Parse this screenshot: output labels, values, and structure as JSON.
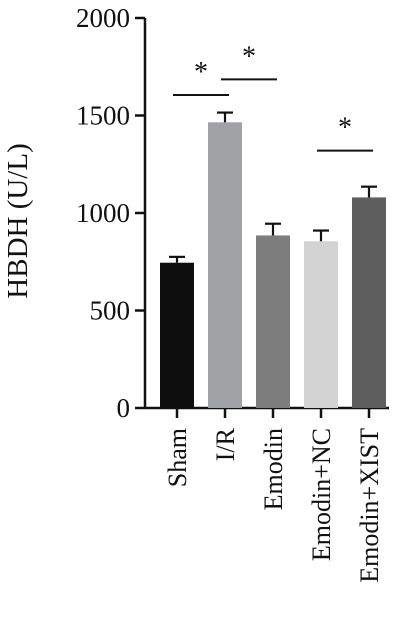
{
  "chart_data": {
    "type": "bar",
    "title": "",
    "xlabel": "",
    "ylabel": "HBDH (U/L)",
    "ylim": [
      0,
      2000
    ],
    "y_ticks": [
      0,
      500,
      1000,
      1500,
      2000
    ],
    "categories": [
      "Sham",
      "I/R",
      "Emodin",
      "Emodin+NC",
      "Emodin+XIST"
    ],
    "values": [
      745,
      1465,
      885,
      855,
      1080
    ],
    "errors": [
      30,
      50,
      60,
      55,
      55
    ],
    "colors": [
      "#0e0e0e",
      "#a1a2a5",
      "#7d7d7d",
      "#d3d3d3",
      "#5e5e5e"
    ],
    "grid": false,
    "legend": "none",
    "annotations": [
      {
        "text": "*",
        "from": 0,
        "to": 1,
        "y": 1605,
        "star_at": 0.5
      },
      {
        "text": "*",
        "from": 1,
        "to": 2,
        "y": 1685,
        "star_at": 0.5
      },
      {
        "text": "*",
        "from": 3,
        "to": 4,
        "y": 1320,
        "star_at": 0.5
      }
    ]
  }
}
